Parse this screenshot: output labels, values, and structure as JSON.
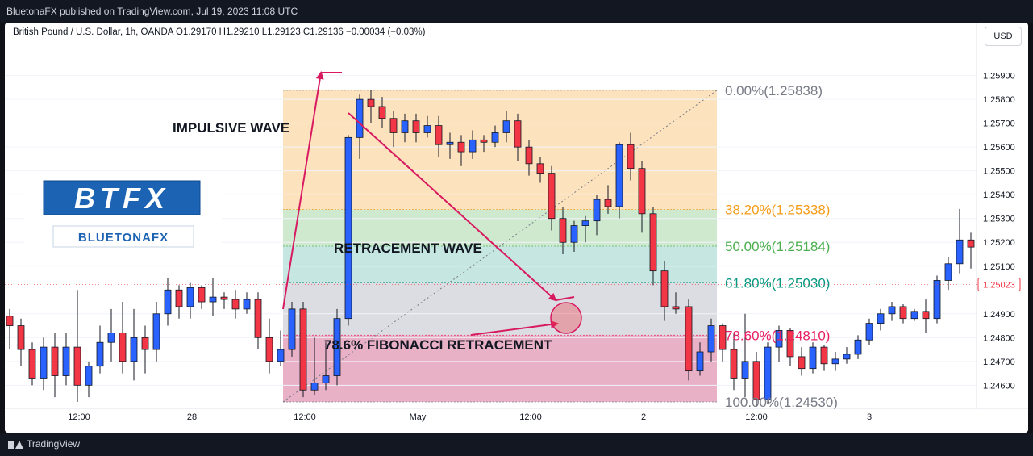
{
  "header": {
    "published": "BluetonaFX published on TradingView.com, Jul 19, 2023 11:08 UTC"
  },
  "legend": {
    "text": "British Pound / U.S. Dollar, 1h, OANDA  O1.29170  H1.29210  L1.29123  C1.29136  −0.00034 (−0.03%)"
  },
  "currency_button": "USD",
  "footer": {
    "brand": "TradingView"
  },
  "logo": {
    "brand": "BTFX",
    "sub": "BLUETONAFX",
    "color": "#1d63b3"
  },
  "colors": {
    "up": "#2962ff",
    "down": "#f23645",
    "wick": "#131722",
    "arrow": "#d81b60",
    "price_tag": "#f23645"
  },
  "chart_data": {
    "type": "candlestick",
    "y_range": [
      1.2453,
      1.2598
    ],
    "y_ticks": [
      {
        "value": 1.259,
        "label": "1.25900"
      },
      {
        "value": 1.258,
        "label": "1.25800"
      },
      {
        "value": 1.257,
        "label": "1.25700"
      },
      {
        "value": 1.256,
        "label": "1.25600"
      },
      {
        "value": 1.255,
        "label": "1.25500"
      },
      {
        "value": 1.254,
        "label": "1.25400"
      },
      {
        "value": 1.253,
        "label": "1.25300"
      },
      {
        "value": 1.252,
        "label": "1.25200"
      },
      {
        "value": 1.251,
        "label": "1.25100"
      },
      {
        "value": 1.249,
        "label": "1.24900"
      },
      {
        "value": 1.248,
        "label": "1.24800"
      },
      {
        "value": 1.247,
        "label": "1.24700"
      },
      {
        "value": 1.246,
        "label": "1.24600"
      }
    ],
    "last_price": {
      "value": 1.25023,
      "label": "1.25023"
    },
    "x_ticks": [
      {
        "index": 6,
        "label": "12:00"
      },
      {
        "index": 16,
        "label": "28"
      },
      {
        "index": 26,
        "label": "12:00"
      },
      {
        "index": 36,
        "label": "May"
      },
      {
        "index": 46,
        "label": "12:00"
      },
      {
        "index": 56,
        "label": "2"
      },
      {
        "index": 66,
        "label": "12:00"
      },
      {
        "index": 76,
        "label": "3"
      }
    ],
    "candles": [
      [
        1.2489,
        1.2485,
        1.2492,
        1.2475
      ],
      [
        1.2485,
        1.2475,
        1.2488,
        1.2468
      ],
      [
        1.2475,
        1.2463,
        1.2478,
        1.246
      ],
      [
        1.2463,
        1.2476,
        1.248,
        1.2458
      ],
      [
        1.2476,
        1.2464,
        1.2482,
        1.2455
      ],
      [
        1.2464,
        1.2476,
        1.2482,
        1.246
      ],
      [
        1.2476,
        1.246,
        1.25,
        1.2453
      ],
      [
        1.246,
        1.2468,
        1.247,
        1.2455
      ],
      [
        1.2468,
        1.2478,
        1.2485,
        1.2465
      ],
      [
        1.2478,
        1.2482,
        1.2492,
        1.247
      ],
      [
        1.2482,
        1.247,
        1.2495,
        1.2465
      ],
      [
        1.247,
        1.248,
        1.2492,
        1.2462
      ],
      [
        1.248,
        1.2475,
        1.2485,
        1.2465
      ],
      [
        1.2475,
        1.249,
        1.2495,
        1.247
      ],
      [
        1.249,
        1.25,
        1.2505,
        1.2485
      ],
      [
        1.25,
        1.2493,
        1.2502,
        1.2488
      ],
      [
        1.2493,
        1.2501,
        1.2503,
        1.2488
      ],
      [
        1.2501,
        1.2495,
        1.2502,
        1.2492
      ],
      [
        1.2495,
        1.2497,
        1.2505,
        1.2489
      ],
      [
        1.2497,
        1.2496,
        1.2499,
        1.2492
      ],
      [
        1.2496,
        1.2492,
        1.25,
        1.2488
      ],
      [
        1.2492,
        1.2496,
        1.2499,
        1.249
      ],
      [
        1.2496,
        1.248,
        1.2499,
        1.2475
      ],
      [
        1.248,
        1.247,
        1.2488,
        1.2465
      ],
      [
        1.247,
        1.2475,
        1.2483,
        1.2468
      ],
      [
        1.2475,
        1.2492,
        1.2495,
        1.2472
      ],
      [
        1.2492,
        1.2458,
        1.2495,
        1.2455
      ],
      [
        1.2458,
        1.2461,
        1.248,
        1.2456
      ],
      [
        1.2461,
        1.2464,
        1.2478,
        1.2458
      ],
      [
        1.2464,
        1.2488,
        1.2492,
        1.246
      ],
      [
        1.2488,
        1.2564,
        1.2565,
        1.2485
      ],
      [
        1.2564,
        1.258,
        1.2582,
        1.2555
      ],
      [
        1.258,
        1.2577,
        1.2584,
        1.257
      ],
      [
        1.2577,
        1.2572,
        1.2581,
        1.2568
      ],
      [
        1.2572,
        1.2566,
        1.2575,
        1.256
      ],
      [
        1.2566,
        1.2571,
        1.2574,
        1.2562
      ],
      [
        1.2571,
        1.2566,
        1.2574,
        1.2562
      ],
      [
        1.2566,
        1.2569,
        1.2573,
        1.2564
      ],
      [
        1.2569,
        1.2561,
        1.2573,
        1.2556
      ],
      [
        1.2561,
        1.2562,
        1.2566,
        1.2555
      ],
      [
        1.2562,
        1.2558,
        1.2565,
        1.2552
      ],
      [
        1.2558,
        1.2563,
        1.2567,
        1.2555
      ],
      [
        1.2563,
        1.2562,
        1.2565,
        1.2558
      ],
      [
        1.2562,
        1.2566,
        1.2569,
        1.256
      ],
      [
        1.2566,
        1.2571,
        1.2575,
        1.2562
      ],
      [
        1.2571,
        1.256,
        1.2574,
        1.2554
      ],
      [
        1.256,
        1.2553,
        1.2563,
        1.2548
      ],
      [
        1.2553,
        1.2549,
        1.2556,
        1.2545
      ],
      [
        1.2549,
        1.253,
        1.2552,
        1.2525
      ],
      [
        1.253,
        1.252,
        1.2535,
        1.2515
      ],
      [
        1.252,
        1.2527,
        1.2529,
        1.2516
      ],
      [
        1.2527,
        1.2529,
        1.2531,
        1.252
      ],
      [
        1.2529,
        1.2538,
        1.254,
        1.2523
      ],
      [
        1.2538,
        1.2535,
        1.2544,
        1.2532
      ],
      [
        1.2535,
        1.2561,
        1.2562,
        1.253
      ],
      [
        1.2561,
        1.2551,
        1.2566,
        1.2546
      ],
      [
        1.2551,
        1.2532,
        1.2554,
        1.2524
      ],
      [
        1.2532,
        1.2508,
        1.2535,
        1.2502
      ],
      [
        1.2508,
        1.2493,
        1.2512,
        1.2487
      ],
      [
        1.2493,
        1.2492,
        1.2499,
        1.249
      ]
    ],
    "fib_levels": [
      {
        "label": "0.00%(1.25838)",
        "value": 1.25838,
        "color": "#787b86"
      },
      {
        "label": "38.20%(1.25338)",
        "value": 1.25338,
        "color": "#f59d1a"
      },
      {
        "label": "50.00%(1.25184)",
        "value": 1.25184,
        "color": "#4caf50"
      },
      {
        "label": "61.80%(1.25030)",
        "value": 1.2503,
        "color": "#089981"
      },
      {
        "label": "78.60%(1.24810)",
        "value": 1.2481,
        "color": "#e91e63"
      },
      {
        "label": "100.00%(1.24530)",
        "value": 1.2453,
        "color": "#787b86"
      }
    ],
    "annotations": {
      "impulsive": "IMPULSIVE WAVE",
      "retracement": "RETRACEMENT WAVE",
      "fib": "78.6% FIBONACCI RETRACEMENT"
    }
  }
}
